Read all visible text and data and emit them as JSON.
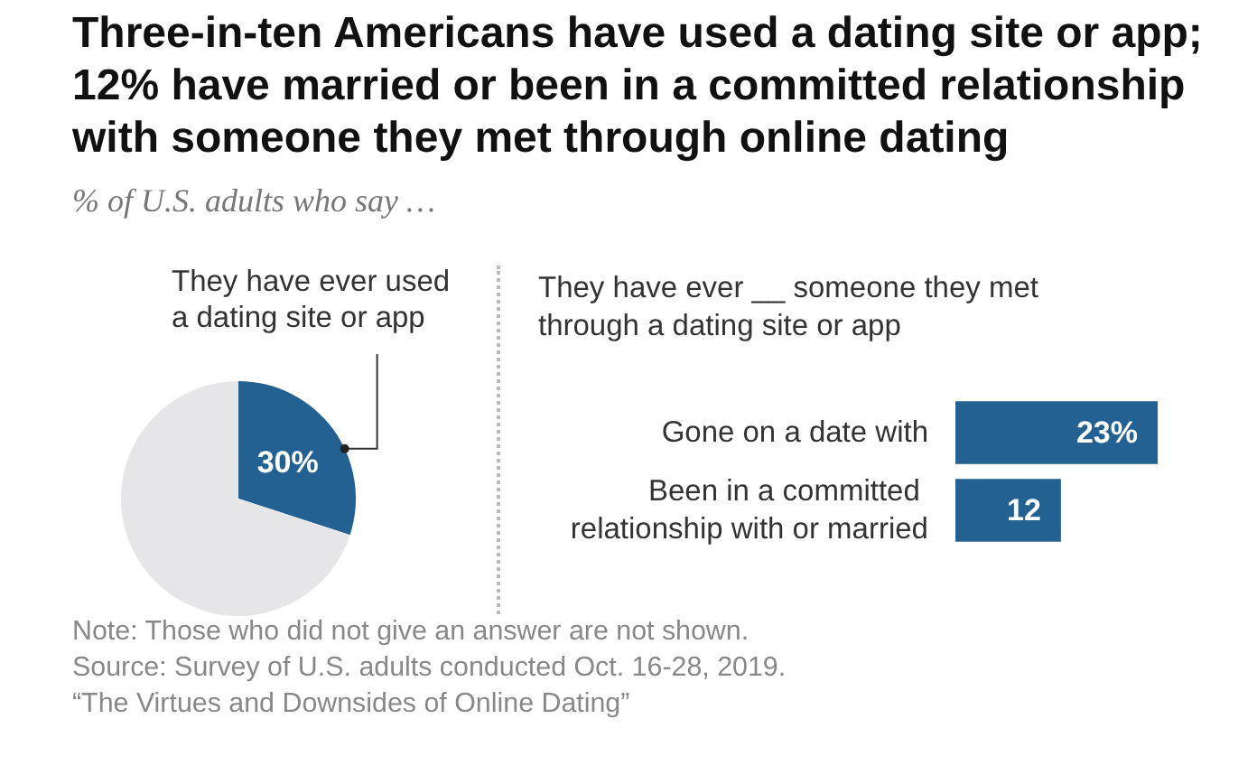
{
  "chart_data": [
    {
      "type": "pie",
      "title": "Three-in-ten Americans have used a dating site or app; 12% have married or been in a committed relationship with someone they met through online dating",
      "subtitle": "% of U.S. adults who say …",
      "categories": [
        "They have ever used a dating site or app",
        null
      ],
      "values": [
        30,
        70
      ],
      "colors": [
        "#236192",
        "#e6e6e8"
      ],
      "value_labels": [
        "30%",
        null
      ],
      "annotations": [
        "Note: Those who did not give an answer are not shown.",
        "Source: Survey of U.S. adults conducted Oct. 16-28, 2019.",
        "“The Virtues and Downsides of Online Dating”"
      ]
    },
    {
      "type": "bar",
      "orientation": "horizontal",
      "title": "They have ever __ someone they met through a dating site or app",
      "categories": [
        "Gone on a date with",
        "Been in a committed relationship with or married"
      ],
      "values": [
        23,
        12
      ],
      "color": "#236192",
      "value_labels": [
        "23%",
        "12"
      ]
    }
  ]
}
